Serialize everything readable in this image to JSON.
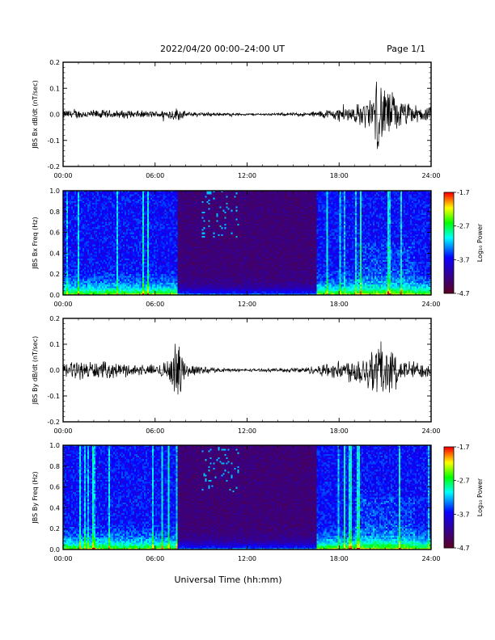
{
  "header": {
    "title": "2022/04/20  00:00–24:00 UT",
    "page": "Page 1/1"
  },
  "xaxis": {
    "label": "Universal Time (hh:mm)",
    "ticks": [
      "00:00",
      "06:00",
      "12:00",
      "18:00",
      "24:00"
    ],
    "range_hours": [
      0,
      24
    ]
  },
  "colorbar": {
    "label": "Log₁₀ Power",
    "ticks": [
      "-1.7",
      "-2.7",
      "-3.7",
      "-4.7"
    ],
    "range": [
      -4.7,
      -1.7
    ]
  },
  "chart_data": [
    {
      "type": "line",
      "ylabel": "JBS Bx dB/dt (nT/sec)",
      "ylim": [
        -0.2,
        0.2
      ],
      "yticks": [
        "0.2",
        "0.1",
        "0.0",
        "-0.1",
        "-0.2"
      ],
      "x": [
        0,
        2,
        4,
        6,
        7.5,
        8,
        10,
        12,
        14,
        16,
        17,
        18,
        19,
        20,
        20.5,
        21,
        21.5,
        22,
        23,
        24
      ],
      "envelope": [
        0.02,
        0.02,
        0.018,
        0.015,
        0.03,
        0.012,
        0.008,
        0.005,
        0.006,
        0.01,
        0.02,
        0.03,
        0.04,
        0.07,
        0.15,
        0.13,
        0.1,
        0.06,
        0.04,
        0.03
      ]
    },
    {
      "type": "heatmap",
      "ylabel": "JBS Bx Freq (Hz)",
      "ylim": [
        0.0,
        1.0
      ],
      "yticks": [
        "1.0",
        "0.8",
        "0.6",
        "0.4",
        "0.2",
        "0.0"
      ],
      "quiet_interval_hours": [
        7.5,
        16.5
      ]
    },
    {
      "type": "line",
      "ylabel": "JBS By dB/dt (nT/sec)",
      "ylim": [
        -0.2,
        0.2
      ],
      "yticks": [
        "0.2",
        "0.1",
        "0.0",
        "-0.1",
        "-0.2"
      ],
      "x": [
        0,
        2,
        4,
        6,
        7,
        7.5,
        8,
        10,
        12,
        14,
        16,
        17,
        18,
        19,
        20,
        20.5,
        21,
        21.5,
        22,
        23,
        24
      ],
      "envelope": [
        0.04,
        0.04,
        0.03,
        0.02,
        0.06,
        0.14,
        0.03,
        0.01,
        0.006,
        0.008,
        0.015,
        0.03,
        0.04,
        0.06,
        0.09,
        0.15,
        0.12,
        0.08,
        0.05,
        0.04,
        0.03
      ]
    },
    {
      "type": "heatmap",
      "ylabel": "JBS By Freq (Hz)",
      "ylim": [
        0.0,
        1.0
      ],
      "yticks": [
        "1.0",
        "0.8",
        "0.6",
        "0.4",
        "0.2",
        "0.0"
      ],
      "quiet_interval_hours": [
        7.5,
        16.5
      ]
    }
  ]
}
